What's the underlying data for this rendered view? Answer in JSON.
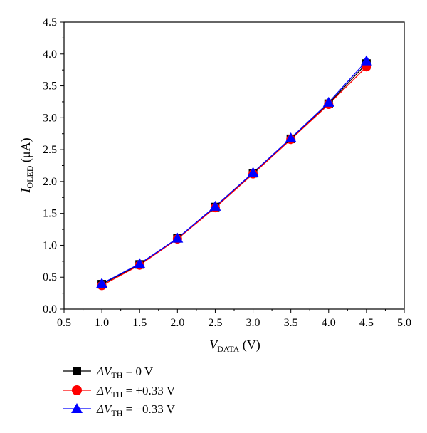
{
  "chart_data": {
    "type": "line",
    "x": [
      1.0,
      1.5,
      2.0,
      2.5,
      3.0,
      3.5,
      4.0,
      4.5
    ],
    "xlim": [
      0.5,
      5.0
    ],
    "ylim": [
      0.0,
      4.5
    ],
    "x_ticks": [
      "0.5",
      "1.0",
      "1.5",
      "2.0",
      "2.5",
      "3.0",
      "3.5",
      "4.0",
      "4.5",
      "5.0"
    ],
    "y_ticks": [
      "0.0",
      "0.5",
      "1.0",
      "1.5",
      "2.0",
      "2.5",
      "3.0",
      "3.5",
      "4.0",
      "4.5"
    ],
    "xlabel": {
      "main": "V",
      "sub": "DATA",
      "unit": " (V)"
    },
    "ylabel": {
      "main": "I",
      "sub": "OLED",
      "unit": " (μA)"
    },
    "grid": false,
    "legend_placement": "bottom-left, below plot",
    "series": [
      {
        "legend": {
          "prefix": "ΔV",
          "sub": "TH",
          "value": " = 0 V"
        },
        "marker": "square",
        "color": "#000000",
        "values": [
          0.39,
          0.7,
          1.11,
          1.6,
          2.13,
          2.67,
          3.22,
          3.85
        ]
      },
      {
        "legend": {
          "prefix": "ΔV",
          "sub": "TH",
          "value": " = +0.33 V"
        },
        "marker": "circle",
        "color": "#ff0000",
        "values": [
          0.37,
          0.69,
          1.1,
          1.59,
          2.12,
          2.66,
          3.21,
          3.8
        ]
      },
      {
        "legend": {
          "prefix": "ΔV",
          "sub": "TH",
          "value": " = −0.33 V"
        },
        "marker": "triangle",
        "color": "#0000ff",
        "values": [
          0.4,
          0.71,
          1.11,
          1.61,
          2.14,
          2.68,
          3.24,
          3.89
        ]
      }
    ]
  }
}
